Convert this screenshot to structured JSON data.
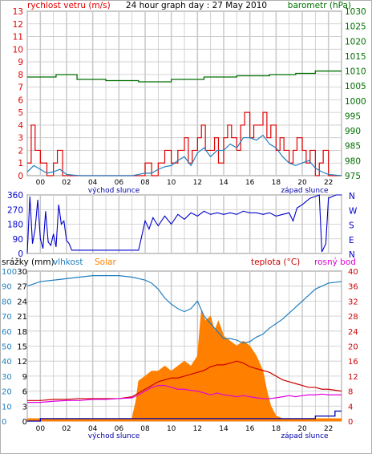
{
  "colors": {
    "wind": "#e00000",
    "wind_avg": "#1f7fbf",
    "barometer": "#007000",
    "direction": "#0000cc",
    "rain": "#0000aa",
    "humidity": "#1f7fbf",
    "solar": "#ff8000",
    "temperature": "#cc0000",
    "dewpoint": "#e000e0",
    "grid": "#c8c8c8",
    "title": "#000000"
  },
  "panel1": {
    "left_label": "rychlost vetru (m/s)",
    "title": "24 hour graph day : 27 May 2010",
    "right_label": "barometr (hPa)",
    "left_ticks": [
      "0",
      "1",
      "2",
      "3",
      "4",
      "5",
      "6",
      "7",
      "8",
      "9",
      "10",
      "11",
      "12",
      "13"
    ],
    "right_ticks": [
      "975",
      "980",
      "985",
      "990",
      "995",
      "1000",
      "1005",
      "1010",
      "1015",
      "1020",
      "1025",
      "1030"
    ],
    "hour_labels": [
      "00",
      "02",
      "04",
      "06",
      "08",
      "10",
      "12",
      "14",
      "16",
      "18",
      "20",
      "22"
    ],
    "sunrise_label": "východ slunce",
    "sunset_label": "západ slunce"
  },
  "panel2": {
    "left_ticks": [
      "0",
      "90",
      "180",
      "270",
      "360"
    ],
    "compass": [
      "N",
      "W",
      "S",
      "E",
      "N"
    ]
  },
  "panel3": {
    "rain_label": "srážky (mm)",
    "humidity_label": "vlhkost",
    "solar_label": "Solar",
    "temp_label": "teplota (°C)",
    "dew_label": "rosný bod",
    "rain_ticks": [
      "0",
      "3",
      "6",
      "9",
      "12",
      "15",
      "18",
      "21",
      "24",
      "27",
      "30"
    ],
    "humidity_ticks": [
      "0",
      "10",
      "20",
      "30",
      "40",
      "50",
      "60",
      "70",
      "80",
      "90",
      "100"
    ],
    "right_ticks": [
      "0",
      "4",
      "8",
      "12",
      "16",
      "20",
      "24",
      "28",
      "32",
      "36",
      "40"
    ],
    "hour_labels": [
      "00",
      "02",
      "04",
      "06",
      "08",
      "10",
      "12",
      "14",
      "16",
      "18",
      "20",
      "22"
    ],
    "sunrise_label": "východ slunce",
    "sunset_label": "západ slunce"
  },
  "chart_data": [
    {
      "type": "line",
      "x_unit": "hour",
      "xlim": [
        23,
        47
      ],
      "ylim": [
        0,
        13
      ],
      "y2lim": [
        975,
        1030
      ],
      "series": [
        {
          "name": "rychlost vetru",
          "axis": "left",
          "x": [
            23,
            23.3,
            23.6,
            24,
            24.5,
            25,
            25.3,
            25.7,
            26,
            27,
            28,
            29,
            30,
            31,
            31.5,
            32,
            32.5,
            33,
            33.5,
            34,
            34.5,
            35,
            35.3,
            35.6,
            36,
            36.3,
            36.6,
            37,
            37.3,
            37.6,
            38,
            38.3,
            38.6,
            39,
            39.3,
            39.6,
            40,
            40.3,
            40.6,
            41,
            41.3,
            41.6,
            42,
            42.3,
            42.6,
            43,
            43.3,
            43.6,
            44,
            44.3,
            44.6,
            45,
            45.3,
            45.6,
            46,
            46.3,
            46.6,
            47
          ],
          "y": [
            1,
            4,
            2,
            1,
            0,
            1,
            2,
            0,
            0,
            0,
            0,
            0,
            0,
            0,
            0,
            1,
            0,
            1,
            2,
            1,
            2,
            3,
            1,
            2,
            3,
            4,
            2,
            2,
            3,
            1,
            3,
            4,
            3,
            2,
            4,
            5,
            3,
            4,
            4,
            5,
            3,
            4,
            2,
            3,
            2,
            1,
            2,
            3,
            2,
            1,
            2,
            0,
            1,
            2,
            0,
            0,
            0,
            0
          ]
        },
        {
          "name": "rychlost vetru avg",
          "axis": "left",
          "x": [
            23,
            23.5,
            24,
            24.5,
            25,
            25.5,
            26,
            27,
            28,
            29,
            30,
            31,
            31.5,
            32,
            32.5,
            33,
            33.5,
            34,
            34.5,
            35,
            35.5,
            36,
            36.5,
            37,
            37.5,
            38,
            38.5,
            39,
            39.5,
            40,
            40.5,
            41,
            41.5,
            42,
            42.5,
            43,
            43.5,
            44,
            44.5,
            45,
            45.5,
            46,
            47
          ],
          "y": [
            0.3,
            0.8,
            0.5,
            0.2,
            0.3,
            0.5,
            0.1,
            0,
            0,
            0,
            0,
            0,
            0.1,
            0.2,
            0.2,
            0.5,
            0.7,
            0.8,
            1.2,
            1.5,
            0.8,
            1.8,
            2.2,
            1.5,
            2,
            2,
            2.5,
            2.2,
            3,
            3,
            2.8,
            3.2,
            2.5,
            2.2,
            1.5,
            1,
            0.8,
            1,
            1.2,
            0.6,
            0.3,
            0.1,
            0
          ]
        },
        {
          "name": "barometr",
          "axis": "right",
          "x": [
            23,
            24.7,
            25.2,
            26.3,
            26.8,
            28.5,
            29,
            31,
            31.5,
            33.5,
            34,
            36,
            36.5,
            38.5,
            39,
            41,
            41.5,
            43,
            43.5,
            44.5,
            45,
            47
          ],
          "y": [
            1008,
            1008,
            1008.8,
            1008.8,
            1007.2,
            1007.2,
            1006.8,
            1006.8,
            1006.4,
            1006.4,
            1007.2,
            1007.2,
            1008,
            1008,
            1008.4,
            1008.4,
            1008.8,
            1008.8,
            1009.2,
            1009.2,
            1010,
            1010
          ]
        }
      ]
    },
    {
      "type": "line",
      "x_unit": "hour",
      "xlim": [
        23,
        47
      ],
      "ylim": [
        0,
        360
      ],
      "series": [
        {
          "name": "smer vetru",
          "x": [
            23,
            23.2,
            23.4,
            23.6,
            23.8,
            24,
            24.2,
            24.4,
            24.6,
            24.8,
            25,
            25.2,
            25.4,
            25.6,
            25.8,
            26,
            26.2,
            26.4,
            27,
            28,
            29,
            30,
            31,
            31.5,
            32,
            32.3,
            32.6,
            33,
            33.5,
            34,
            34.5,
            35,
            35.5,
            36,
            36.5,
            37,
            37.5,
            38,
            38.5,
            39,
            39.5,
            40,
            40.5,
            41,
            41.5,
            42,
            42.5,
            43,
            43.3,
            43.6,
            44,
            44.3,
            44.6,
            45,
            45.3,
            45.5,
            45.8,
            46,
            46.3,
            46.6,
            47
          ],
          "y": [
            0,
            350,
            60,
            150,
            330,
            90,
            30,
            260,
            70,
            50,
            120,
            40,
            300,
            180,
            200,
            80,
            60,
            20,
            20,
            20,
            20,
            20,
            20,
            20,
            200,
            150,
            220,
            170,
            230,
            180,
            240,
            210,
            250,
            230,
            260,
            240,
            250,
            240,
            250,
            240,
            260,
            250,
            250,
            240,
            250,
            230,
            240,
            250,
            200,
            280,
            300,
            320,
            340,
            350,
            360,
            10,
            60,
            340,
            350,
            360,
            360
          ]
        }
      ]
    },
    {
      "type": "area",
      "x_unit": "hour",
      "xlim": [
        23,
        47
      ],
      "ylim": [
        0,
        30
      ],
      "y_humidity_lim": [
        0,
        100
      ],
      "y2lim": [
        0,
        40
      ],
      "series": [
        {
          "name": "srážky",
          "axis": "rain",
          "x": [
            23,
            23.8,
            24,
            44.8,
            45,
            46.3,
            46.5,
            47
          ],
          "y": [
            0,
            0,
            0.5,
            0.5,
            1,
            1,
            2,
            2
          ]
        },
        {
          "name": "vlhkost",
          "axis": "humidity",
          "x": [
            23,
            24,
            25,
            26,
            27,
            28,
            29,
            30,
            31,
            31.5,
            32,
            32.5,
            33,
            33.5,
            34,
            34.5,
            35,
            35.5,
            36,
            36.5,
            37,
            37.5,
            38,
            38.5,
            39,
            39.5,
            40,
            40.5,
            41,
            41.5,
            42,
            42.5,
            43,
            43.5,
            44,
            44.5,
            45,
            45.5,
            46,
            47
          ],
          "y": [
            90,
            93,
            94,
            95,
            96,
            97,
            97,
            97,
            96,
            95,
            94,
            92,
            88,
            82,
            78,
            75,
            73,
            75,
            80,
            70,
            65,
            60,
            55,
            55,
            54,
            52,
            53,
            56,
            58,
            62,
            65,
            68,
            72,
            76,
            80,
            84,
            88,
            90,
            92,
            93
          ]
        },
        {
          "name": "Solar",
          "axis": "rain",
          "x": [
            23,
            23.5,
            31,
            31.3,
            31.5,
            32,
            32.5,
            33,
            33.5,
            34,
            34.5,
            35,
            35.5,
            36,
            36.3,
            36.6,
            37,
            37.3,
            37.6,
            38,
            38.5,
            39,
            39.5,
            40,
            40.5,
            41,
            41.3,
            41.6,
            42,
            42.5,
            47
          ],
          "y": [
            0.5,
            0.5,
            0.5,
            4,
            8,
            9,
            10,
            10,
            11,
            10,
            11,
            12,
            11,
            13,
            22,
            20,
            21,
            18,
            20,
            17,
            16,
            15,
            16,
            15,
            13,
            10,
            6,
            3,
            1,
            0.5,
            0.5
          ]
        },
        {
          "name": "teplota",
          "axis": "right",
          "x": [
            23,
            24,
            25,
            26,
            27,
            28,
            29,
            30,
            31,
            31.5,
            32,
            32.5,
            33,
            33.5,
            34,
            34.5,
            35,
            35.5,
            36,
            36.5,
            37,
            37.5,
            38,
            38.5,
            39,
            39.5,
            40,
            40.5,
            41,
            41.5,
            42,
            42.5,
            43,
            43.5,
            44,
            44.5,
            45,
            45.5,
            46,
            47
          ],
          "y": [
            5.5,
            5.5,
            5.8,
            5.8,
            6,
            6,
            6,
            6,
            6.5,
            7.5,
            8.5,
            9.5,
            10.5,
            11,
            11.5,
            11.5,
            12,
            12.5,
            13,
            13.5,
            14.5,
            15,
            15,
            15.5,
            16,
            15.5,
            14.5,
            14,
            13.5,
            13,
            12,
            11,
            10.5,
            10,
            9.5,
            9,
            9,
            8.5,
            8.5,
            8
          ]
        },
        {
          "name": "rosný bod",
          "axis": "right",
          "x": [
            23,
            24,
            25,
            26,
            27,
            28,
            29,
            30,
            31,
            31.5,
            32,
            32.5,
            33,
            33.5,
            34,
            34.5,
            35,
            35.5,
            36,
            36.5,
            37,
            37.5,
            38,
            38.5,
            39,
            39.5,
            40,
            40.5,
            41,
            41.5,
            42,
            42.5,
            43,
            43.5,
            44,
            44.5,
            45,
            45.5,
            46,
            47
          ],
          "y": [
            5,
            5,
            5.3,
            5.5,
            5.5,
            5.8,
            5.8,
            6,
            6.2,
            7,
            8,
            9,
            9.5,
            9.5,
            9,
            8.5,
            8.5,
            8.2,
            8,
            7.5,
            7,
            7.5,
            7,
            6.8,
            6.5,
            6.8,
            6.5,
            6.2,
            6,
            6,
            6.2,
            6.5,
            6.8,
            6.5,
            6.8,
            7,
            7,
            7.2,
            7,
            7
          ]
        }
      ]
    }
  ]
}
